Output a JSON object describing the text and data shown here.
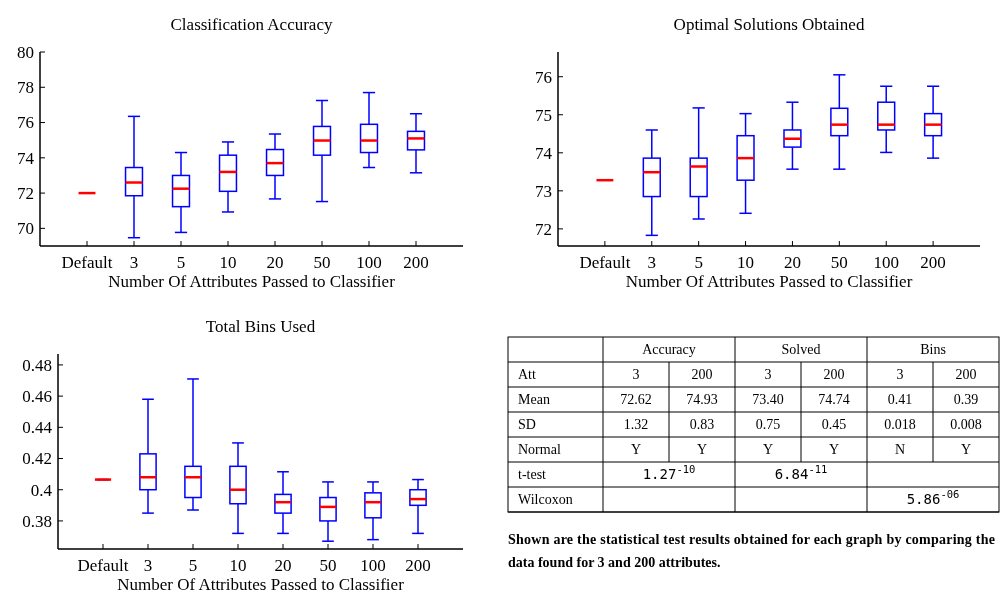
{
  "chart_data": [
    {
      "type": "box",
      "title": "Classification Accuracy",
      "xlabel": "Number Of Attributes Passed to Classifier",
      "categories": [
        "Default",
        "3",
        "5",
        "10",
        "20",
        "50",
        "100",
        "200"
      ],
      "color": "#0000ff",
      "ylim": [
        69,
        80
      ],
      "yticks": [
        70,
        72,
        74,
        76,
        78,
        80
      ],
      "grid": false,
      "boxes": [
        {
          "low": 72,
          "q1": 72,
          "median": 72,
          "q3": 72,
          "high": 72
        },
        {
          "low": 69.47,
          "q1": 71.85,
          "median": 72.6,
          "q3": 73.45,
          "high": 76.35
        },
        {
          "low": 69.77,
          "q1": 71.23,
          "median": 72.25,
          "q3": 73.0,
          "high": 74.3
        },
        {
          "low": 70.93,
          "q1": 72.1,
          "median": 73.2,
          "q3": 74.15,
          "high": 74.9
        },
        {
          "low": 71.67,
          "q1": 73.0,
          "median": 73.7,
          "q3": 74.47,
          "high": 75.35
        },
        {
          "low": 71.52,
          "q1": 74.15,
          "median": 74.98,
          "q3": 75.78,
          "high": 77.25
        },
        {
          "low": 73.45,
          "q1": 74.3,
          "median": 74.98,
          "q3": 75.9,
          "high": 77.7
        },
        {
          "low": 73.15,
          "q1": 74.45,
          "median": 75.1,
          "q3": 75.5,
          "high": 76.5
        }
      ]
    },
    {
      "type": "box",
      "title": "Optimal Solutions Obtained",
      "xlabel": "Number Of Attributes Passed to Classifier",
      "categories": [
        "Default",
        "3",
        "5",
        "10",
        "20",
        "50",
        "100",
        "200"
      ],
      "color": "#0000ff",
      "ylim": [
        71.55,
        76.65
      ],
      "yticks": [
        72,
        73,
        74,
        75,
        76
      ],
      "grid": false,
      "boxes": [
        {
          "low": 73.28,
          "q1": 73.28,
          "median": 73.28,
          "q3": 73.28,
          "high": 73.28
        },
        {
          "low": 71.83,
          "q1": 72.85,
          "median": 73.49,
          "q3": 73.86,
          "high": 74.6
        },
        {
          "low": 72.26,
          "q1": 72.85,
          "median": 73.64,
          "q3": 73.86,
          "high": 75.18
        },
        {
          "low": 72.41,
          "q1": 73.28,
          "median": 73.86,
          "q3": 74.45,
          "high": 75.03
        },
        {
          "low": 73.57,
          "q1": 74.15,
          "median": 74.37,
          "q3": 74.6,
          "high": 75.33
        },
        {
          "low": 73.57,
          "q1": 74.45,
          "median": 74.74,
          "q3": 75.17,
          "high": 76.05
        },
        {
          "low": 74.01,
          "q1": 74.6,
          "median": 74.74,
          "q3": 75.33,
          "high": 75.75
        },
        {
          "low": 73.86,
          "q1": 74.45,
          "median": 74.74,
          "q3": 75.03,
          "high": 75.75
        }
      ]
    },
    {
      "type": "box",
      "title": "Total Bins Used",
      "xlabel": "Number Of Attributes Passed to Classifier",
      "categories": [
        "Default",
        "3",
        "5",
        "10",
        "20",
        "50",
        "100",
        "200"
      ],
      "color": "#0000ff",
      "ylim": [
        0.362,
        0.487
      ],
      "yticks": [
        0.38,
        0.4,
        0.42,
        0.44,
        0.46,
        0.48
      ],
      "grid": false,
      "boxes": [
        {
          "low": 0.4065,
          "q1": 0.4065,
          "median": 0.4065,
          "q3": 0.4065,
          "high": 0.4065
        },
        {
          "low": 0.385,
          "q1": 0.4,
          "median": 0.408,
          "q3": 0.423,
          "high": 0.458
        },
        {
          "low": 0.387,
          "q1": 0.395,
          "median": 0.408,
          "q3": 0.415,
          "high": 0.471
        },
        {
          "low": 0.372,
          "q1": 0.391,
          "median": 0.4,
          "q3": 0.415,
          "high": 0.43
        },
        {
          "low": 0.372,
          "q1": 0.385,
          "median": 0.392,
          "q3": 0.397,
          "high": 0.4115
        },
        {
          "low": 0.367,
          "q1": 0.38,
          "median": 0.389,
          "q3": 0.395,
          "high": 0.405
        },
        {
          "low": 0.368,
          "q1": 0.382,
          "median": 0.392,
          "q3": 0.398,
          "high": 0.405
        },
        {
          "low": 0.372,
          "q1": 0.39,
          "median": 0.394,
          "q3": 0.4,
          "high": 0.4065
        }
      ]
    },
    {
      "type": "other",
      "categories": [
        "Accuracy",
        "Solved",
        "Bins"
      ],
      "y_categories": [
        "Att",
        "Mean",
        "SD",
        "Normal",
        "t-test",
        "Wilcoxon"
      ],
      "cell_labels": [
        [
          "3",
          "200",
          "3",
          "200",
          "3",
          "200"
        ],
        [
          "72.62",
          "74.93",
          "73.40",
          "74.74",
          "0.41",
          "0.39"
        ],
        [
          "1.32",
          "0.83",
          "0.75",
          "0.45",
          "0.018",
          "0.008"
        ],
        [
          "Y",
          "Y",
          "Y",
          "Y",
          "N",
          "Y"
        ],
        [
          "1.27$^{-10}$",
          null,
          "6.84$^{-11}$",
          null,
          null,
          null
        ],
        [
          null,
          null,
          null,
          null,
          "5.86$^{-06}$",
          null
        ]
      ],
      "annotations": [
        "Shown are the statistical test results obtained for each graph by comparing the data found for 3 and 200 attributes."
      ]
    }
  ]
}
